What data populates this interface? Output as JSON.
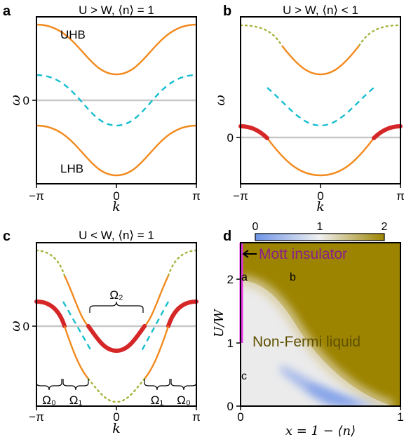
{
  "panel_a": {
    "letter": "a",
    "title": "U > W, ⟨n⟩ = 1",
    "uhb_label": "UHB",
    "lhb_label": "LHB",
    "ylabel": "ω",
    "zero_tick": "0",
    "xtick_left": "−π",
    "xtick_mid": "0",
    "xtick_right": "π",
    "xlabel": "k"
  },
  "panel_b": {
    "letter": "b",
    "title": "U > W, ⟨n⟩ < 1",
    "ylabel": "ω",
    "zero_tick": "0",
    "xtick_left": "−π",
    "xtick_mid": "0",
    "xtick_right": "π",
    "xlabel": "k"
  },
  "panel_c": {
    "letter": "c",
    "title": "U < W, ⟨n⟩ = 1",
    "ylabel": "ω",
    "zero_tick": "0",
    "omega2": "Ω₂",
    "omega0_left": "Ω₀",
    "omega1_left": "Ω₁",
    "omega1_right": "Ω₁",
    "omega0_right": "Ω₀",
    "xtick_left": "−π",
    "xtick_mid": "0",
    "xtick_right": "π",
    "xlabel": "k"
  },
  "panel_d": {
    "letter": "d",
    "colorbar_ticks": [
      "0",
      "1",
      "2"
    ],
    "mott_label": "Mott insulator",
    "nfl_label": "Non-Fermi liquid",
    "point_a": "a",
    "point_b": "b",
    "point_c": "c",
    "ylabel": "U/W",
    "xlabel": "x = 1 − ⟨n⟩",
    "yticks": [
      "0",
      "1",
      "2"
    ],
    "xticks": [
      "0",
      "1"
    ],
    "colors": {
      "low": "#6f95e8",
      "mid": "#f0f0f0",
      "high": "#9c8400",
      "mott": "#e633e6",
      "mott_text": "#8b1f8b"
    }
  }
}
